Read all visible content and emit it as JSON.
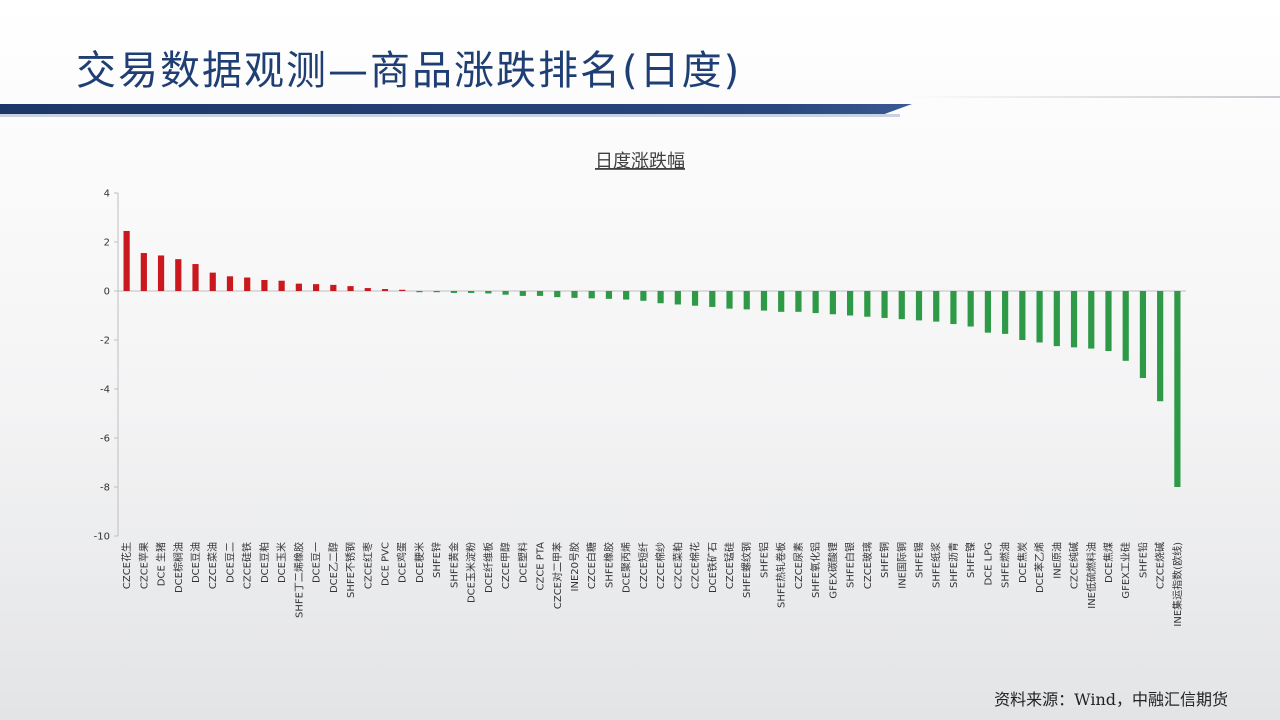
{
  "header": {
    "title": "交易数据观测—商品涨跌排名(日度)",
    "accent_color": "#1f3f74"
  },
  "footer": {
    "source": "资料来源：Wind，中融汇信期货"
  },
  "chart_data": {
    "type": "bar",
    "title": "日度涨跌幅",
    "xlabel": "",
    "ylabel": "",
    "ylim": [
      -10,
      4
    ],
    "yticks": [
      4,
      2,
      0,
      -2,
      -4,
      -6,
      -8,
      -10
    ],
    "grid": false,
    "legend": "none",
    "colors": {
      "positive": "#c9191e",
      "negative": "#2e9a48"
    },
    "categories": [
      "CZCE花生",
      "CZCE苹果",
      "DCE 生猪",
      "DCE棕榈油",
      "DCE豆油",
      "CZCE菜油",
      "DCE豆二",
      "CZCE硅铁",
      "DCE豆粕",
      "DCE玉米",
      "SHFE丁二烯橡胶",
      "DCE豆一",
      "DCE乙二醇",
      "SHFE不锈钢",
      "CZCE红枣",
      "DCE PVC",
      "DCE鸡蛋",
      "DCE粳米",
      "SHFE锌",
      "SHFE黄金",
      "DCE玉米淀粉",
      "DCE纤维板",
      "CZCE甲醇",
      "DCE塑料",
      "CZCE PTA",
      "CZCE对二甲苯",
      "INE20号胶",
      "CZCE白糖",
      "SHFE橡胶",
      "DCE聚丙烯",
      "CZCE短纤",
      "CZCE棉纱",
      "CZCE菜粕",
      "CZCE棉花",
      "DCE铁矿石",
      "CZCE锰硅",
      "SHFE螺纹钢",
      "SHFE铝",
      "SHFE热轧卷板",
      "CZCE尿素",
      "SHFE氧化铝",
      "GFEX碳酸锂",
      "SHFE白银",
      "CZCE玻璃",
      "SHFE铜",
      "INE国际铜",
      "SHFE锡",
      "SHFE纸浆",
      "SHFE沥青",
      "SHFE镍",
      "DCE LPG",
      "SHFE燃油",
      "DCE焦炭",
      "DCE苯乙烯",
      "INE原油",
      "CZCE纯碱",
      "INE低硫燃料油",
      "DCE焦煤",
      "GFEX工业硅",
      "SHFE铅",
      "CZCE烧碱",
      "INE集运指数(欧线)"
    ],
    "values": [
      2.45,
      1.55,
      1.45,
      1.3,
      1.1,
      0.75,
      0.6,
      0.55,
      0.45,
      0.42,
      0.3,
      0.28,
      0.25,
      0.2,
      0.12,
      0.08,
      0.05,
      -0.05,
      -0.05,
      -0.08,
      -0.08,
      -0.1,
      -0.15,
      -0.2,
      -0.2,
      -0.25,
      -0.28,
      -0.3,
      -0.32,
      -0.35,
      -0.4,
      -0.5,
      -0.55,
      -0.6,
      -0.65,
      -0.72,
      -0.75,
      -0.8,
      -0.85,
      -0.85,
      -0.9,
      -0.95,
      -1.0,
      -1.05,
      -1.1,
      -1.15,
      -1.2,
      -1.25,
      -1.35,
      -1.45,
      -1.7,
      -1.75,
      -2.0,
      -2.1,
      -2.25,
      -2.3,
      -2.35,
      -2.45,
      -2.85,
      -3.55,
      -4.5,
      -8.0
    ]
  }
}
